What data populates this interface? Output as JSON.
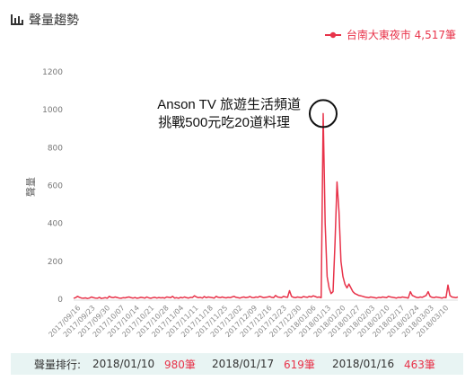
{
  "header": {
    "title": "聲量趨勢",
    "icon": "bar-chart-icon"
  },
  "legend": {
    "label": "台南大東夜市 4,517筆",
    "color": "#e8334a"
  },
  "annotation": {
    "line1": "Anson TV 旅遊生活頻道",
    "line2": "挑戰500元吃20道料理"
  },
  "footer": {
    "label": "聲量排行:",
    "ranks": [
      {
        "date": "2018/01/10",
        "count": "980筆"
      },
      {
        "date": "2018/01/17",
        "count": "619筆"
      },
      {
        "date": "2018/01/16",
        "count": "463筆"
      }
    ]
  },
  "chart_data": {
    "type": "line",
    "title": "",
    "xlabel": "",
    "ylabel": "聲量",
    "ylim": [
      0,
      1200
    ],
    "yticks": [
      0,
      200,
      400,
      600,
      800,
      1000,
      1200
    ],
    "grid": false,
    "color": "#e8334a",
    "xticks": [
      "2017/09/16",
      "2017/09/23",
      "2017/09/30",
      "2017/10/07",
      "2017/10/14",
      "2017/10/21",
      "2017/10/28",
      "2017/11/04",
      "2017/11/11",
      "2017/11/18",
      "2017/11/25",
      "2017/12/02",
      "2017/12/09",
      "2017/12/16",
      "2017/12/23",
      "2017/12/30",
      "2018/01/06",
      "2018/01/13",
      "2018/01/20",
      "2018/01/27",
      "2018/02/03",
      "2018/02/10",
      "2018/02/17",
      "2018/02/24",
      "2018/03/03",
      "2018/03/10"
    ],
    "series": [
      {
        "name": "台南大東夜市",
        "values": [
          5,
          8,
          15,
          10,
          6,
          5,
          7,
          4,
          6,
          12,
          8,
          6,
          5,
          10,
          4,
          6,
          8,
          5,
          15,
          10,
          8,
          12,
          9,
          6,
          5,
          8,
          7,
          10,
          12,
          8,
          6,
          9,
          5,
          7,
          10,
          8,
          6,
          12,
          7,
          5,
          8,
          10,
          6,
          9,
          7,
          8,
          6,
          12,
          10,
          8,
          15,
          6,
          8,
          5,
          10,
          7,
          12,
          8,
          6,
          10,
          9,
          18,
          12,
          8,
          10,
          6,
          14,
          8,
          12,
          10,
          8,
          6,
          15,
          10,
          8,
          12,
          9,
          7,
          10,
          8,
          12,
          15,
          10,
          8,
          6,
          10,
          12,
          8,
          10,
          14,
          9,
          8,
          12,
          10,
          15,
          12,
          8,
          10,
          12,
          14,
          10,
          8,
          20,
          12,
          10,
          8,
          15,
          12,
          10,
          45,
          15,
          10,
          8,
          12,
          10,
          8,
          14,
          12,
          10,
          15,
          12,
          18,
          14,
          10,
          12,
          8,
          980,
          400,
          120,
          60,
          30,
          40,
          300,
          619,
          463,
          200,
          120,
          80,
          60,
          80,
          60,
          40,
          30,
          25,
          20,
          18,
          15,
          12,
          10,
          8,
          12,
          10,
          8,
          6,
          10,
          8,
          12,
          10,
          8,
          15,
          12,
          10,
          8,
          6,
          10,
          8,
          12,
          10,
          8,
          6,
          40,
          20,
          15,
          10,
          8,
          12,
          10,
          15,
          20,
          40,
          15,
          10,
          8,
          12,
          10,
          8,
          6,
          10,
          8,
          75,
          20,
          12,
          10,
          8,
          12
        ]
      }
    ]
  }
}
